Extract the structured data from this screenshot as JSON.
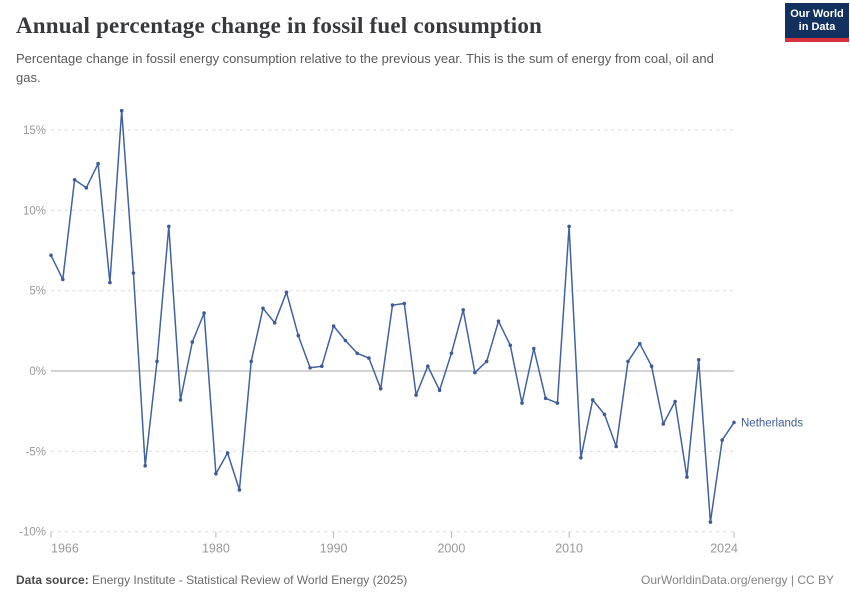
{
  "header": {
    "title": "Annual percentage change in fossil fuel consumption",
    "subtitle": "Percentage change in fossil energy consumption relative to the previous year. This is the sum of energy from coal, oil and gas.",
    "logo": {
      "line1": "Our World",
      "line2": "in Data"
    }
  },
  "chart_data": {
    "type": "line",
    "title": "Annual percentage change in fossil fuel consumption",
    "xlabel": "",
    "ylabel": "",
    "x": [
      1966,
      1967,
      1968,
      1969,
      1970,
      1971,
      1972,
      1973,
      1974,
      1975,
      1976,
      1977,
      1978,
      1979,
      1980,
      1981,
      1982,
      1983,
      1984,
      1985,
      1986,
      1987,
      1988,
      1989,
      1990,
      1991,
      1992,
      1993,
      1994,
      1995,
      1996,
      1997,
      1998,
      1999,
      2000,
      2001,
      2002,
      2003,
      2004,
      2005,
      2006,
      2007,
      2008,
      2009,
      2010,
      2011,
      2012,
      2013,
      2014,
      2015,
      2016,
      2017,
      2018,
      2019,
      2020,
      2021,
      2022,
      2023,
      2024
    ],
    "series": [
      {
        "name": "Netherlands",
        "values": [
          7.2,
          5.7,
          11.9,
          11.4,
          12.9,
          5.5,
          16.2,
          6.1,
          -5.9,
          0.6,
          9.0,
          -1.8,
          1.8,
          3.6,
          -6.4,
          -5.1,
          -7.4,
          0.6,
          3.9,
          3.0,
          4.9,
          2.2,
          0.2,
          0.3,
          2.8,
          1.9,
          1.1,
          0.8,
          -1.1,
          4.1,
          4.2,
          -1.5,
          0.3,
          -1.2,
          1.1,
          3.8,
          -0.1,
          0.6,
          3.1,
          1.6,
          -2.0,
          1.4,
          -1.7,
          -2.0,
          9.0,
          -5.4,
          -1.8,
          -2.7,
          -4.7,
          0.6,
          1.7,
          0.3,
          -3.3,
          -1.9,
          -6.6,
          0.7,
          -9.4,
          -4.3,
          -3.2
        ]
      }
    ],
    "ylim": [
      -10,
      16.5
    ],
    "yticks": [
      15,
      10,
      5,
      0,
      -5,
      -10
    ],
    "ytick_labels": [
      "15%",
      "10%",
      "5%",
      "0%",
      "-5%",
      "-10%"
    ],
    "xticks": [
      1966,
      1980,
      1990,
      2000,
      2010,
      2024
    ],
    "xtick_labels": [
      "1966",
      "1980",
      "1990",
      "2000",
      "2010",
      "2024"
    ],
    "grid": "horizontal dashed",
    "legend": "end-of-line label"
  },
  "colors": {
    "line": "#4262a0",
    "marker": "#3d5c97",
    "series_label": "#3d5c97",
    "grid": "#dcdcdc",
    "zero_line": "#a8a8a8",
    "tick": "#b4b4b4",
    "axis_text": "#999999",
    "logo_bg": "#12315e",
    "logo_red": "#d7303f"
  },
  "footer": {
    "datasource_label": "Data source:",
    "datasource_value": "Energy Institute - Statistical Review of World Energy (2025)",
    "credit": "OurWorldinData.org/energy | CC BY"
  }
}
